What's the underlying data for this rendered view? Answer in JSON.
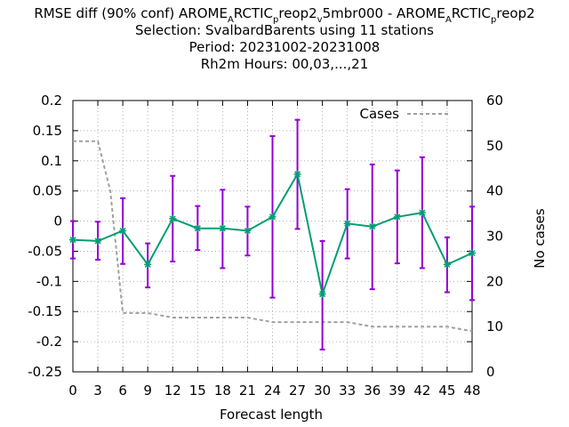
{
  "chart_data": {
    "type": "line",
    "title_lines": [
      {
        "segments": [
          {
            "text": "RMSE diff (90% conf) AROME"
          },
          {
            "text": "A",
            "sub": true
          },
          {
            "text": "RCTIC"
          },
          {
            "text": "p",
            "sub": true
          },
          {
            "text": "reop2"
          },
          {
            "text": "v",
            "sub": true
          },
          {
            "text": "5mbr000 - AROME"
          },
          {
            "text": "A",
            "sub": true
          },
          {
            "text": "RCTIC"
          },
          {
            "text": "p",
            "sub": true
          },
          {
            "text": "reop2"
          }
        ]
      },
      {
        "text": "Selection: SvalbardBarents using    11 stations"
      },
      {
        "text": "Period: 20231002-20231008"
      },
      {
        "text": "Rh2m   Hours:  00,03,...,21"
      }
    ],
    "xlabel": "Forecast length",
    "ylabel_right": "No cases",
    "x": [
      0,
      3,
      6,
      9,
      12,
      15,
      18,
      21,
      24,
      27,
      30,
      33,
      36,
      39,
      42,
      45,
      48
    ],
    "xlim": [
      0,
      48
    ],
    "ylim": [
      -0.25,
      0.2
    ],
    "y2lim": [
      0,
      60
    ],
    "yticks": [
      "0.2",
      "0.15",
      "0.1",
      "0.05",
      "0",
      "-0.05",
      "-0.1",
      "-0.15",
      "-0.2",
      "-0.25"
    ],
    "ytick_values": [
      0.2,
      0.15,
      0.1,
      0.05,
      0,
      -0.05,
      -0.1,
      -0.15,
      -0.2,
      -0.25
    ],
    "y2ticks": [
      "60",
      "50",
      "40",
      "30",
      "20",
      "10",
      "0"
    ],
    "y2tick_values": [
      60,
      50,
      40,
      30,
      20,
      10,
      0
    ],
    "series": [
      {
        "name": "RMSE diff",
        "color": "#009e73",
        "values": [
          -0.031,
          -0.033,
          -0.016,
          -0.072,
          0.004,
          -0.012,
          -0.012,
          -0.016,
          0.007,
          0.078,
          -0.121,
          -0.004,
          -0.009,
          0.007,
          0.014,
          -0.072,
          -0.053
        ],
        "err_low": [
          -0.062,
          -0.064,
          -0.071,
          -0.11,
          -0.067,
          -0.048,
          -0.078,
          -0.057,
          -0.127,
          -0.013,
          -0.213,
          -0.062,
          -0.113,
          -0.07,
          -0.078,
          -0.118,
          -0.131
        ],
        "err_high": [
          0.0,
          -0.001,
          0.038,
          -0.037,
          0.075,
          0.025,
          0.052,
          0.024,
          0.141,
          0.168,
          -0.033,
          0.053,
          0.094,
          0.084,
          0.106,
          -0.027,
          0.024
        ],
        "errbar_color": "#9400d3"
      },
      {
        "name": "Cases",
        "axis": "y2",
        "color": "#a0a0a0",
        "dashed": true,
        "x": [
          0,
          3,
          4.5,
          6,
          9,
          12,
          15,
          18,
          21,
          24,
          27,
          30,
          33,
          36,
          39,
          42,
          45,
          48
        ],
        "values": [
          51,
          51,
          40,
          13,
          13,
          12,
          12,
          12,
          12,
          11,
          11,
          11,
          11,
          10,
          10,
          10,
          10,
          9
        ]
      }
    ],
    "legend": {
      "label": "Cases",
      "position": "top-right"
    }
  }
}
